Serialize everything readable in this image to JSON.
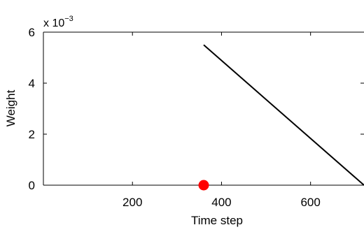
{
  "chart_data": {
    "type": "line",
    "xlabel": "Time step",
    "ylabel": "Weight",
    "y_multiplier_base": "x 10",
    "y_multiplier_exponent": "−3",
    "xlim": [
      0,
      720
    ],
    "ylim": [
      0,
      6
    ],
    "x_ticks": [
      200,
      400,
      600
    ],
    "x_tick_labels": [
      "200",
      "400",
      "600"
    ],
    "y_ticks": [
      0,
      2,
      4,
      6
    ],
    "y_tick_labels": [
      "0",
      "2",
      "4",
      "6"
    ],
    "grid": false,
    "series": [
      {
        "color": "#000000",
        "x": [
          360,
          720
        ],
        "y": [
          5.5,
          0.0
        ]
      }
    ],
    "markers": [
      {
        "x": 360,
        "y": 0,
        "color": "#ff0000"
      }
    ]
  }
}
